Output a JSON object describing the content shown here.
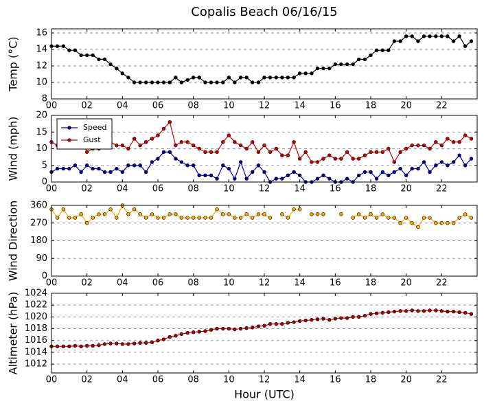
{
  "chart_data": [
    {
      "type": "line",
      "title": "Copalis Beach 06/16/15",
      "ylabel": "Temp (°C)",
      "x": [
        0,
        0.33,
        0.67,
        1,
        1.33,
        1.67,
        2,
        2.33,
        2.67,
        3,
        3.33,
        3.67,
        4,
        4.33,
        4.67,
        5,
        5.33,
        5.67,
        6,
        6.33,
        6.67,
        7,
        7.33,
        7.67,
        8,
        8.33,
        8.67,
        9,
        9.33,
        9.67,
        10,
        10.33,
        10.67,
        11,
        11.33,
        11.67,
        12,
        12.33,
        12.67,
        13,
        13.33,
        13.67,
        14,
        14.33,
        14.67,
        15,
        15.33,
        15.67,
        16,
        16.33,
        16.67,
        17,
        17.33,
        17.67,
        18,
        18.33,
        18.67,
        19,
        19.33,
        19.67,
        20,
        20.33,
        20.67,
        21,
        21.33,
        21.67,
        22,
        22.33,
        22.67,
        23,
        23.33,
        23.67
      ],
      "xlim": [
        0,
        24
      ],
      "xticks": [
        {
          "value": 0,
          "label": "00"
        },
        {
          "value": 2,
          "label": "02"
        },
        {
          "value": 4,
          "label": "04"
        },
        {
          "value": 6,
          "label": "06"
        },
        {
          "value": 8,
          "label": "08"
        },
        {
          "value": 10,
          "label": "10"
        },
        {
          "value": 12,
          "label": "12"
        },
        {
          "value": 14,
          "label": "14"
        },
        {
          "value": 16,
          "label": "16"
        },
        {
          "value": 18,
          "label": "18"
        },
        {
          "value": 20,
          "label": "20"
        },
        {
          "value": 22,
          "label": "22"
        }
      ],
      "ylim": [
        8,
        16.5
      ],
      "yticks": [
        8,
        10,
        12,
        14,
        16
      ],
      "grid": true,
      "series": [
        {
          "color": "#000000",
          "marker_color": "#000000",
          "values": [
            14.4,
            14.4,
            14.4,
            13.9,
            13.9,
            13.3,
            13.3,
            13.3,
            12.8,
            12.8,
            12.2,
            11.7,
            11.1,
            10.6,
            10.0,
            10.0,
            10.0,
            10.0,
            10.0,
            10.0,
            10.0,
            10.6,
            10.0,
            10.3,
            10.6,
            10.6,
            10.0,
            10.0,
            10.0,
            10.0,
            10.6,
            10.0,
            10.6,
            10.6,
            10.0,
            10.0,
            10.6,
            10.6,
            10.6,
            10.6,
            10.6,
            10.6,
            11.1,
            11.1,
            11.1,
            11.7,
            11.7,
            11.7,
            12.2,
            12.2,
            12.2,
            12.2,
            12.8,
            12.8,
            13.3,
            13.9,
            13.9,
            13.9,
            15.0,
            15.0,
            15.6,
            15.6,
            15.0,
            15.6,
            15.6,
            15.6,
            15.6,
            15.6,
            15.0,
            15.6,
            14.4,
            15.0
          ]
        }
      ]
    },
    {
      "type": "line",
      "ylabel": "Wind (mph)",
      "x": [
        0,
        0.33,
        0.67,
        1,
        1.33,
        1.67,
        2,
        2.33,
        2.67,
        3,
        3.33,
        3.67,
        4,
        4.33,
        4.67,
        5,
        5.33,
        5.67,
        6,
        6.33,
        6.67,
        7,
        7.33,
        7.67,
        8,
        8.33,
        8.67,
        9,
        9.33,
        9.67,
        10,
        10.33,
        10.67,
        11,
        11.33,
        11.67,
        12,
        12.33,
        12.67,
        13,
        13.33,
        13.67,
        14,
        14.33,
        14.67,
        15,
        15.33,
        15.67,
        16,
        16.33,
        16.67,
        17,
        17.33,
        17.67,
        18,
        18.33,
        18.67,
        19,
        19.33,
        19.67,
        20,
        20.33,
        20.67,
        21,
        21.33,
        21.67,
        22,
        22.33,
        22.67,
        23,
        23.33,
        23.67
      ],
      "xlim": [
        0,
        24
      ],
      "xticks": [
        {
          "value": 0,
          "label": "00"
        },
        {
          "value": 2,
          "label": "02"
        },
        {
          "value": 4,
          "label": "04"
        },
        {
          "value": 6,
          "label": "06"
        },
        {
          "value": 8,
          "label": "08"
        },
        {
          "value": 10,
          "label": "10"
        },
        {
          "value": 12,
          "label": "12"
        },
        {
          "value": 14,
          "label": "14"
        },
        {
          "value": 16,
          "label": "16"
        },
        {
          "value": 18,
          "label": "18"
        },
        {
          "value": 20,
          "label": "20"
        },
        {
          "value": 22,
          "label": "22"
        }
      ],
      "ylim": [
        0,
        20
      ],
      "yticks": [
        0,
        5,
        10,
        15,
        20
      ],
      "grid": true,
      "legend": "upper left",
      "series": [
        {
          "name": "Speed",
          "color": "#0000aa",
          "marker_color": "#0000aa",
          "values": [
            3,
            4,
            4,
            4,
            5,
            3,
            5,
            4,
            4,
            3,
            3,
            4,
            3,
            5,
            5,
            5,
            3,
            6,
            7,
            9,
            9,
            7,
            6,
            5,
            5,
            2,
            2,
            2,
            1,
            5,
            4,
            1,
            6,
            1,
            3,
            5,
            3,
            0,
            1,
            1,
            2,
            3,
            2,
            0,
            0,
            1,
            2,
            1,
            0,
            0,
            1,
            0,
            2,
            3,
            3,
            1,
            3,
            2,
            3,
            4,
            2,
            4,
            4,
            6,
            3,
            5,
            6,
            5,
            6,
            8,
            5,
            7
          ]
        },
        {
          "name": "Gust",
          "color": "#cc0000",
          "marker_color": "#cc0000",
          "values": [
            12,
            11,
            11,
            12,
            11,
            13,
            9,
            10,
            10,
            11,
            12,
            11,
            11,
            10,
            13,
            11,
            12,
            13,
            14,
            16,
            18,
            11,
            12,
            12,
            11,
            10,
            9,
            9,
            9,
            12,
            14,
            12,
            11,
            10,
            12,
            9,
            11,
            9,
            10,
            8,
            8,
            12,
            7,
            9,
            6,
            6,
            7,
            8,
            7,
            7,
            9,
            7,
            7,
            8,
            9,
            9,
            9,
            10,
            6,
            9,
            10,
            11,
            11,
            11,
            10,
            12,
            11,
            13,
            12,
            12,
            14,
            13
          ]
        }
      ]
    },
    {
      "type": "line",
      "ylabel": "Wind Direction",
      "x": [
        0,
        0.33,
        0.67,
        1,
        1.33,
        1.67,
        2,
        2.33,
        2.67,
        3,
        3.33,
        3.67,
        4,
        4.33,
        4.67,
        5,
        5.33,
        5.67,
        6,
        6.33,
        6.67,
        7,
        7.33,
        7.67,
        8,
        8.33,
        8.67,
        9,
        9.33,
        9.67,
        10,
        10.33,
        10.67,
        11,
        11.33,
        11.67,
        12,
        12.33,
        12.67,
        13,
        13.33,
        13.67,
        14,
        14.33,
        14.67,
        15,
        15.33,
        15.67,
        16,
        16.33,
        16.67,
        17,
        17.33,
        17.67,
        18,
        18.33,
        18.67,
        19,
        19.33,
        19.67,
        20,
        20.33,
        20.67,
        21,
        21.33,
        21.67,
        22,
        22.33,
        22.67,
        23,
        23.33,
        23.67
      ],
      "xlim": [
        0,
        24
      ],
      "xticks": [
        {
          "value": 0,
          "label": "00"
        },
        {
          "value": 2,
          "label": "02"
        },
        {
          "value": 4,
          "label": "04"
        },
        {
          "value": 6,
          "label": "06"
        },
        {
          "value": 8,
          "label": "08"
        },
        {
          "value": 10,
          "label": "10"
        },
        {
          "value": 12,
          "label": "12"
        },
        {
          "value": 14,
          "label": "14"
        },
        {
          "value": 16,
          "label": "16"
        },
        {
          "value": 18,
          "label": "18"
        },
        {
          "value": 20,
          "label": "20"
        },
        {
          "value": 22,
          "label": "22"
        }
      ],
      "ylim": [
        0,
        360
      ],
      "yticks": [
        0,
        90,
        180,
        270,
        360
      ],
      "grid": true,
      "series": [
        {
          "color": "#ffa500",
          "marker_color": "#ffa500",
          "values": [
            340,
            297,
            340,
            297,
            297,
            315,
            270,
            297,
            315,
            315,
            340,
            297,
            360,
            315,
            340,
            315,
            297,
            315,
            297,
            297,
            315,
            315,
            297,
            297,
            297,
            297,
            297,
            297,
            340,
            315,
            315,
            297,
            297,
            315,
            297,
            315,
            315,
            297,
            null,
            315,
            297,
            340,
            340,
            null,
            315,
            315,
            315,
            null,
            null,
            315,
            null,
            297,
            315,
            297,
            315,
            297,
            315,
            297,
            297,
            270,
            297,
            270,
            250,
            297,
            297,
            270,
            270,
            270,
            270,
            297,
            315,
            297
          ]
        }
      ]
    },
    {
      "type": "line",
      "ylabel": "Altimeter (hPa)",
      "xlabel": "Hour (UTC)",
      "x": [
        0,
        0.33,
        0.67,
        1,
        1.33,
        1.67,
        2,
        2.33,
        2.67,
        3,
        3.33,
        3.67,
        4,
        4.33,
        4.67,
        5,
        5.33,
        5.67,
        6,
        6.33,
        6.67,
        7,
        7.33,
        7.67,
        8,
        8.33,
        8.67,
        9,
        9.33,
        9.67,
        10,
        10.33,
        10.67,
        11,
        11.33,
        11.67,
        12,
        12.33,
        12.67,
        13,
        13.33,
        13.67,
        14,
        14.33,
        14.67,
        15,
        15.33,
        15.67,
        16,
        16.33,
        16.67,
        17,
        17.33,
        17.67,
        18,
        18.33,
        18.67,
        19,
        19.33,
        19.67,
        20,
        20.33,
        20.67,
        21,
        21.33,
        21.67,
        22,
        22.33,
        22.67,
        23,
        23.33,
        23.67
      ],
      "xlim": [
        0,
        24
      ],
      "xticks": [
        {
          "value": 0,
          "label": "00"
        },
        {
          "value": 2,
          "label": "02"
        },
        {
          "value": 4,
          "label": "04"
        },
        {
          "value": 6,
          "label": "06"
        },
        {
          "value": 8,
          "label": "08"
        },
        {
          "value": 10,
          "label": "10"
        },
        {
          "value": 12,
          "label": "12"
        },
        {
          "value": 14,
          "label": "14"
        },
        {
          "value": 16,
          "label": "16"
        },
        {
          "value": 18,
          "label": "18"
        },
        {
          "value": 20,
          "label": "20"
        },
        {
          "value": 22,
          "label": "22"
        }
      ],
      "ylim": [
        1010.5,
        1024
      ],
      "yticks": [
        1012,
        1014,
        1016,
        1018,
        1020,
        1022,
        1024
      ],
      "grid": true,
      "series": [
        {
          "color": "#cc0000",
          "marker_color": "#aa0000",
          "values": [
            1015.0,
            1015.0,
            1015.0,
            1015.0,
            1015.1,
            1015.0,
            1015.1,
            1015.1,
            1015.2,
            1015.4,
            1015.5,
            1015.5,
            1015.4,
            1015.4,
            1015.5,
            1015.6,
            1015.6,
            1015.7,
            1016.0,
            1016.2,
            1016.6,
            1016.8,
            1017.1,
            1017.3,
            1017.4,
            1017.5,
            1017.6,
            1017.8,
            1018.0,
            1018.0,
            1018.0,
            1017.9,
            1018.0,
            1018.1,
            1018.2,
            1018.4,
            1018.5,
            1018.8,
            1018.8,
            1018.8,
            1019.0,
            1019.1,
            1019.3,
            1019.4,
            1019.5,
            1019.6,
            1019.7,
            1019.5,
            1019.7,
            1019.8,
            1019.8,
            1020.0,
            1020.0,
            1020.2,
            1020.5,
            1020.6,
            1020.7,
            1020.8,
            1020.9,
            1021.0,
            1021.0,
            1021.1,
            1021.0,
            1021.0,
            1021.1,
            1021.1,
            1021.0,
            1020.9,
            1020.9,
            1020.8,
            1020.7,
            1020.5
          ]
        }
      ]
    }
  ]
}
